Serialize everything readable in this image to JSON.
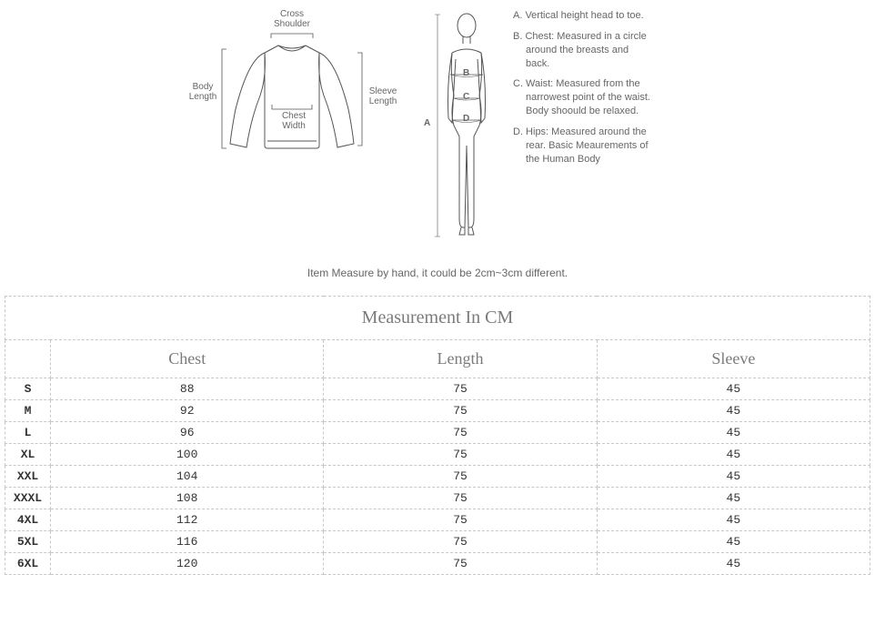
{
  "garment_labels": {
    "cross_shoulder_l1": "Cross",
    "cross_shoulder_l2": "Shoulder",
    "body_length_l1": "Body",
    "body_length_l2": "Length",
    "chest_width_l1": "Chest",
    "chest_width_l2": "Width",
    "sleeve_length_l1": "Sleeve",
    "sleeve_length_l2": "Length"
  },
  "body_labels": {
    "A": "A",
    "B": "B",
    "C": "C",
    "D": "D"
  },
  "definitions": {
    "a": "A. Vertical height head to toe.",
    "b": "B. Chest: Measured in a circle around the breasts and back.",
    "c": "C. Waist: Measured from the narrowest point of the waist. Body shoould be relaxed.",
    "d": "D. Hips: Measured around the rear. Basic Meaurements of the Human Body"
  },
  "note_text": "Item Measure by hand, it could be 2cm~3cm different.",
  "table": {
    "title": "Measurement In CM",
    "columns": [
      "Chest",
      "Length",
      "Sleeve"
    ],
    "rows": [
      {
        "size": "S",
        "chest": "88",
        "length": "75",
        "sleeve": "45"
      },
      {
        "size": "M",
        "chest": "92",
        "length": "75",
        "sleeve": "45"
      },
      {
        "size": "L",
        "chest": "96",
        "length": "75",
        "sleeve": "45"
      },
      {
        "size": "XL",
        "chest": "100",
        "length": "75",
        "sleeve": "45"
      },
      {
        "size": "XXL",
        "chest": "104",
        "length": "75",
        "sleeve": "45"
      },
      {
        "size": "XXXL",
        "chest": "108",
        "length": "75",
        "sleeve": "45"
      },
      {
        "size": "4XL",
        "chest": "112",
        "length": "75",
        "sleeve": "45"
      },
      {
        "size": "5XL",
        "chest": "116",
        "length": "75",
        "sleeve": "45"
      },
      {
        "size": "6XL",
        "chest": "120",
        "length": "75",
        "sleeve": "45"
      }
    ]
  },
  "styling": {
    "diagram_stroke": "#555555",
    "text_color": "#666666",
    "table_border": "#c8c8c8",
    "title_color": "#7b7b7b",
    "mono_font": "Courier New"
  }
}
